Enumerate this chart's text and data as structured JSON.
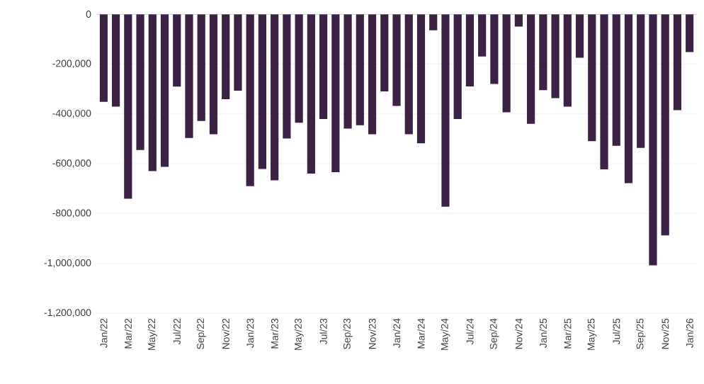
{
  "chart_data": {
    "type": "bar",
    "color": "#3b2245",
    "grid": "y",
    "categories": [
      "Jan/22",
      null,
      "Mar/22",
      null,
      "May/22",
      null,
      "Jul/22",
      null,
      "Sep/22",
      null,
      "Nov/22",
      null,
      "Jan/23",
      null,
      "Mar/23",
      null,
      "May/23",
      null,
      "Jul/23",
      null,
      "Sep/23",
      null,
      "Nov/23",
      null,
      "Jan/24",
      null,
      "Mar/24",
      null,
      "May/24",
      null,
      "Jul/24",
      null,
      "Sep/24",
      null,
      "Nov/24",
      null,
      "Jan/25",
      null,
      "Mar/25",
      null,
      "May/25",
      null,
      "Jul/25",
      null,
      "Sep/25",
      null,
      "Nov/25",
      null,
      "Jan/26"
    ],
    "values": [
      -352000,
      -371000,
      -741000,
      -545000,
      -630000,
      -613000,
      -291000,
      -497000,
      -429000,
      -482000,
      -341000,
      -307000,
      -690000,
      -621000,
      -667000,
      -499000,
      -436000,
      -640000,
      -421000,
      -634000,
      -459000,
      -446000,
      -482000,
      -310000,
      -368000,
      -482000,
      -518000,
      -65000,
      -773000,
      -421000,
      -290000,
      -170000,
      -280000,
      -394000,
      -50000,
      -440000,
      -305000,
      -337000,
      -371000,
      -175000,
      -510000,
      -623000,
      -528000,
      -678000,
      -537000,
      -1008000,
      -888000,
      -385000,
      -152000
    ],
    "ylim": [
      -1200000,
      0
    ],
    "yticks": [
      {
        "value": 0,
        "label": "0"
      },
      {
        "value": -200000,
        "label": "-200,000"
      },
      {
        "value": -400000,
        "label": "-400,000"
      },
      {
        "value": -600000,
        "label": "-600,000"
      },
      {
        "value": -800000,
        "label": "-800,000"
      },
      {
        "value": -1000000,
        "label": "-1,000,000"
      },
      {
        "value": -1200000,
        "label": "-1,200,000"
      }
    ]
  }
}
